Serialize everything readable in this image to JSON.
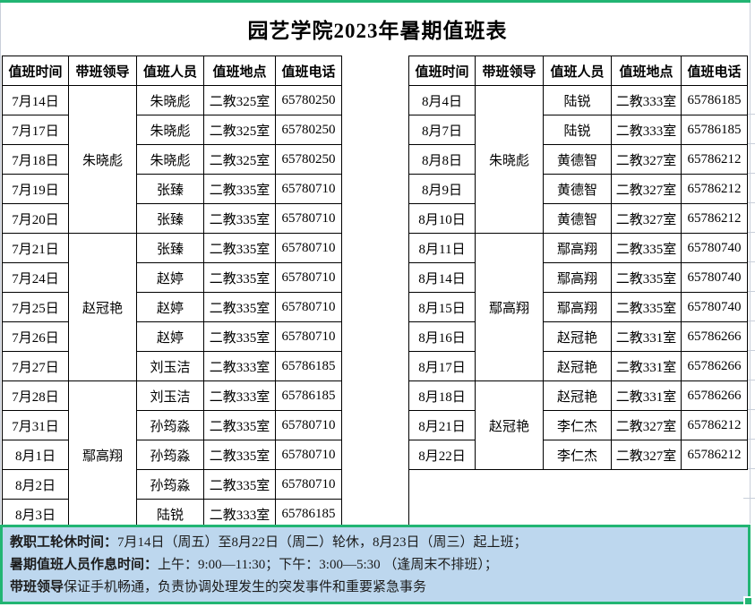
{
  "title": "园艺学院2023年暑期值班表",
  "columns": [
    "值班时间",
    "带班领导",
    "值班人员",
    "值班地点",
    "值班电话"
  ],
  "left_table": {
    "groups": [
      {
        "leader": "朱晓彪",
        "rows": [
          {
            "date": "7月14日",
            "person": "朱晓彪",
            "location": "二教325室",
            "phone": "65780250"
          },
          {
            "date": "7月17日",
            "person": "朱晓彪",
            "location": "二教325室",
            "phone": "65780250"
          },
          {
            "date": "7月18日",
            "person": "朱晓彪",
            "location": "二教325室",
            "phone": "65780250"
          },
          {
            "date": "7月19日",
            "person": "张臻",
            "location": "二教335室",
            "phone": "65780710"
          },
          {
            "date": "7月20日",
            "person": "张臻",
            "location": "二教335室",
            "phone": "65780710"
          }
        ]
      },
      {
        "leader": "赵冠艳",
        "rows": [
          {
            "date": "7月21日",
            "person": "张臻",
            "location": "二教335室",
            "phone": "65780710"
          },
          {
            "date": "7月24日",
            "person": "赵婷",
            "location": "二教335室",
            "phone": "65780710"
          },
          {
            "date": "7月25日",
            "person": "赵婷",
            "location": "二教335室",
            "phone": "65780710"
          },
          {
            "date": "7月26日",
            "person": "赵婷",
            "location": "二教335室",
            "phone": "65780710"
          },
          {
            "date": "7月27日",
            "person": "刘玉洁",
            "location": "二教333室",
            "phone": "65786185"
          }
        ]
      },
      {
        "leader": "鄢高翔",
        "rows": [
          {
            "date": "7月28日",
            "person": "刘玉洁",
            "location": "二教333室",
            "phone": "65786185"
          },
          {
            "date": "7月31日",
            "person": "孙筠淼",
            "location": "二教335室",
            "phone": "65780710"
          },
          {
            "date": "8月1日",
            "person": "孙筠淼",
            "location": "二教335室",
            "phone": "65780710"
          },
          {
            "date": "8月2日",
            "person": "孙筠淼",
            "location": "二教335室",
            "phone": "65780710"
          },
          {
            "date": "8月3日",
            "person": "陆锐",
            "location": "二教333室",
            "phone": "65786185"
          }
        ]
      }
    ]
  },
  "right_table": {
    "groups": [
      {
        "leader": "朱晓彪",
        "rows": [
          {
            "date": "8月4日",
            "person": "陆锐",
            "location": "二教333室",
            "phone": "65786185"
          },
          {
            "date": "8月7日",
            "person": "陆锐",
            "location": "二教333室",
            "phone": "65786185"
          },
          {
            "date": "8月8日",
            "person": "黄德智",
            "location": "二教327室",
            "phone": "65786212"
          },
          {
            "date": "8月9日",
            "person": "黄德智",
            "location": "二教327室",
            "phone": "65786212"
          },
          {
            "date": "8月10日",
            "person": "黄德智",
            "location": "二教327室",
            "phone": "65786212"
          }
        ]
      },
      {
        "leader": "鄢高翔",
        "rows": [
          {
            "date": "8月11日",
            "person": "鄢高翔",
            "location": "二教335室",
            "phone": "65780740"
          },
          {
            "date": "8月14日",
            "person": "鄢高翔",
            "location": "二教335室",
            "phone": "65780740"
          },
          {
            "date": "8月15日",
            "person": "鄢高翔",
            "location": "二教335室",
            "phone": "65780740"
          },
          {
            "date": "8月16日",
            "person": "赵冠艳",
            "location": "二教331室",
            "phone": "65786266"
          },
          {
            "date": "8月17日",
            "person": "赵冠艳",
            "location": "二教331室",
            "phone": "65786266"
          }
        ]
      },
      {
        "leader": "赵冠艳",
        "rows": [
          {
            "date": "8月18日",
            "person": "赵冠艳",
            "location": "二教331室",
            "phone": "65786266"
          },
          {
            "date": "8月21日",
            "person": "李仁杰",
            "location": "二教327室",
            "phone": "65786212"
          },
          {
            "date": "8月22日",
            "person": "李仁杰",
            "location": "二教327室",
            "phone": "65786212"
          }
        ]
      }
    ]
  },
  "notes": [
    {
      "bold": "教职工轮休时间：",
      "text": "7月14日（周五）至8月22日（周二）轮休，8月23日（周三）起上班；"
    },
    {
      "bold": "暑期值班人员作息时间：",
      "text": "上午：9:00—11:30；下午：3:00—5:30 （逢周末不排班）；"
    },
    {
      "bold": "带班领导",
      "text": "保证手机畅通，负责协调处理发生的突发事件和重要紧急事务"
    }
  ],
  "colors": {
    "selection_green": "#22b573",
    "notes_background": "#bdd7ee",
    "gridline_grey": "#c9cfda",
    "table_border": "#000000"
  }
}
